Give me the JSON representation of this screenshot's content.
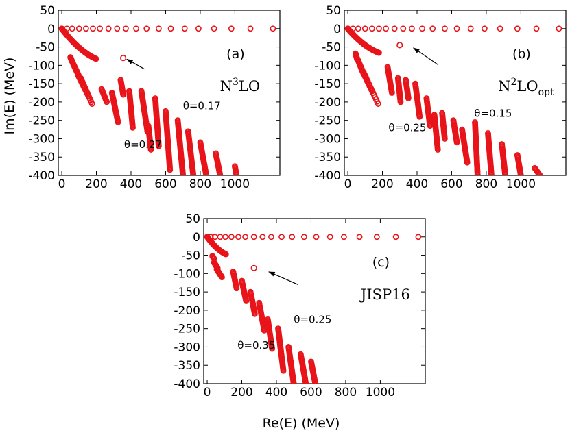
{
  "figure": {
    "xlabel": "Re(E) (MeV)",
    "ylabel": "Im(E) (MeV)",
    "marker_color": "#e8141a"
  },
  "chart_data": [
    {
      "type": "scatter",
      "panel": "(a)",
      "model": {
        "base": "N",
        "sup": "3",
        "rest": "LO",
        "sub": ""
      },
      "xlim": [
        -20,
        1260
      ],
      "ylim": [
        -400,
        50
      ],
      "xticks": [
        "0",
        "200",
        "400",
        "600",
        "800",
        "1000"
      ],
      "yticks": [
        "50",
        "0",
        "-50",
        "-100",
        "-150",
        "-200",
        "-250",
        "-300",
        "-350",
        "-400"
      ],
      "real_axis_x": [
        0,
        30,
        60,
        100,
        140,
        180,
        220,
        270,
        320,
        370,
        430,
        490,
        560,
        630,
        710,
        790,
        880,
        980,
        1090,
        1220
      ],
      "diag_x_max": 200,
      "diag_slope": -0.62,
      "inner_strands": [
        [
          60,
          90,
          50,
          78
        ],
        [
          90,
          120,
          65,
          95
        ],
        [
          120,
          150,
          80,
          110
        ],
        [
          150,
          180,
          95,
          128
        ],
        [
          175,
          205,
          110,
          135
        ]
      ],
      "strands": [
        [
          230,
          165,
          260,
          200
        ],
        [
          290,
          175,
          325,
          255
        ],
        [
          340,
          140,
          355,
          180
        ],
        [
          390,
          170,
          410,
          270
        ],
        [
          460,
          170,
          495,
          280
        ],
        [
          500,
          265,
          515,
          330
        ],
        [
          540,
          190,
          560,
          320
        ],
        [
          600,
          225,
          625,
          385
        ],
        [
          670,
          250,
          700,
          400
        ],
        [
          730,
          280,
          760,
          400
        ],
        [
          800,
          310,
          835,
          400
        ],
        [
          890,
          340,
          915,
          400
        ],
        [
          1000,
          375,
          1010,
          400
        ]
      ],
      "isolated": [
        {
          "x": 355,
          "y": -80
        }
      ],
      "arrow": {
        "from": [
          477,
          -110
        ],
        "to": [
          375,
          -83
        ]
      },
      "theta_labels": [
        {
          "text": "θ=0.17",
          "x": 700,
          "y": -220
        },
        {
          "text": "θ=0.27",
          "x": 360,
          "y": -325
        }
      ]
    },
    {
      "type": "scatter",
      "panel": "(b)",
      "model": {
        "base": "N",
        "sup": "2",
        "rest": "LO",
        "sub": "opt"
      },
      "xlim": [
        -20,
        1260
      ],
      "ylim": [
        -400,
        50
      ],
      "xticks": [
        "0",
        "200",
        "400",
        "600",
        "800",
        "1000"
      ],
      "yticks": [
        "50",
        "0",
        "-50",
        "-100",
        "-150",
        "-200",
        "-250",
        "-300",
        "-350",
        "-400"
      ],
      "real_axis_x": [
        0,
        30,
        60,
        100,
        140,
        180,
        220,
        270,
        320,
        370,
        430,
        490,
        560,
        630,
        710,
        790,
        880,
        980,
        1090,
        1220
      ],
      "diag_x_max": 180,
      "diag_slope": -0.55,
      "inner_strands": [
        [
          55,
          85,
          45,
          68
        ],
        [
          85,
          115,
          55,
          82
        ],
        [
          115,
          145,
          68,
          98
        ],
        [
          145,
          175,
          80,
          112
        ],
        [
          175,
          205,
          92,
          120
        ]
      ],
      "strands": [
        [
          230,
          105,
          255,
          175
        ],
        [
          290,
          135,
          305,
          200
        ],
        [
          335,
          140,
          350,
          190
        ],
        [
          390,
          150,
          415,
          240
        ],
        [
          455,
          190,
          475,
          265
        ],
        [
          500,
          235,
          520,
          330
        ],
        [
          545,
          230,
          560,
          300
        ],
        [
          610,
          250,
          630,
          310
        ],
        [
          660,
          275,
          690,
          365
        ],
        [
          735,
          255,
          750,
          400
        ],
        [
          810,
          285,
          830,
          400
        ],
        [
          890,
          315,
          910,
          400
        ],
        [
          980,
          345,
          1000,
          400
        ],
        [
          1080,
          380,
          1110,
          400
        ]
      ],
      "isolated": [
        {
          "x": 300,
          "y": -45
        }
      ],
      "arrow": {
        "from": [
          520,
          -98
        ],
        "to": [
          378,
          -52
        ]
      },
      "theta_labels": [
        {
          "text": "θ=0.15",
          "x": 730,
          "y": -240
        },
        {
          "text": "θ=0.25",
          "x": 235,
          "y": -280
        }
      ]
    },
    {
      "type": "scatter",
      "panel": "(c)",
      "model": {
        "base": "JISP16",
        "sup": "",
        "rest": "",
        "sub": ""
      },
      "xlim": [
        -20,
        1260
      ],
      "ylim": [
        -400,
        50
      ],
      "xticks": [
        "0",
        "200",
        "400",
        "600",
        "800",
        "1000"
      ],
      "yticks": [
        "50",
        "0",
        "-50",
        "-100",
        "-150",
        "-200",
        "-250",
        "-300",
        "-350",
        "-400"
      ],
      "real_axis_x": [
        0,
        20,
        45,
        75,
        105,
        140,
        180,
        220,
        270,
        320,
        370,
        430,
        490,
        560,
        630,
        710,
        790,
        880,
        980,
        1090,
        1220
      ],
      "diag_x_max": 110,
      "diag_slope": -0.65,
      "inner_strands": [
        [
          40,
          60,
          30,
          52
        ],
        [
          60,
          85,
          40,
          70
        ],
        [
          85,
          110,
          55,
          88
        ]
      ],
      "strands": [
        [
          150,
          95,
          170,
          140
        ],
        [
          200,
          120,
          225,
          175
        ],
        [
          250,
          150,
          275,
          210
        ],
        [
          300,
          180,
          330,
          255
        ],
        [
          350,
          225,
          375,
          305
        ],
        [
          410,
          250,
          440,
          365
        ],
        [
          470,
          300,
          500,
          400
        ],
        [
          540,
          320,
          570,
          400
        ],
        [
          600,
          340,
          625,
          400
        ]
      ],
      "isolated": [
        {
          "x": 270,
          "y": -85
        }
      ],
      "arrow": {
        "from": [
          525,
          -130
        ],
        "to": [
          355,
          -95
        ]
      },
      "theta_labels": [
        {
          "text": "θ=0.25",
          "x": 500,
          "y": -235
        },
        {
          "text": "θ=0.35",
          "x": 175,
          "y": -305
        }
      ]
    }
  ]
}
